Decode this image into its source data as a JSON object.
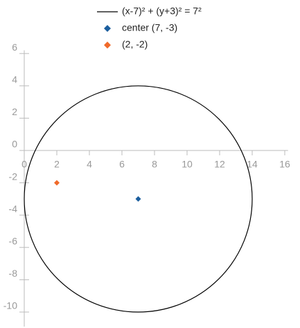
{
  "chart_data": {
    "type": "scatter",
    "series": [
      {
        "name": "(x-7)² + (y+3)² = 7²",
        "kind": "circle",
        "color": "#000000",
        "center": [
          7,
          -3
        ],
        "radius": 7
      },
      {
        "name": "center (7, -3)",
        "kind": "point",
        "color": "#1b5e9e",
        "x": [
          7
        ],
        "values": [
          -3
        ]
      },
      {
        "name": "(2, -2)",
        "kind": "point",
        "color": "#f06a2a",
        "x": [
          2
        ],
        "values": [
          -2
        ]
      }
    ],
    "xlim": [
      0,
      16.2
    ],
    "ylim": [
      -10.9,
      6.2
    ],
    "xticks": [
      0,
      2,
      4,
      6,
      8,
      10,
      12,
      14,
      16
    ],
    "yticks": [
      -10,
      -8,
      -6,
      -4,
      -2,
      0,
      2,
      4,
      6
    ],
    "legend": "top"
  }
}
